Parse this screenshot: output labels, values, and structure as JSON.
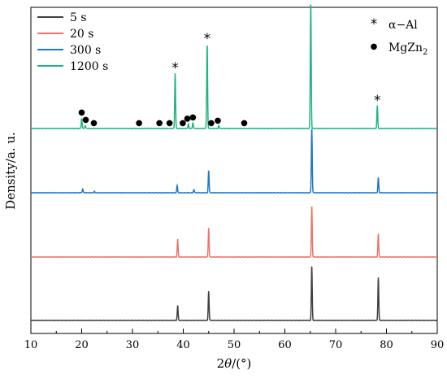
{
  "chart_data": {
    "type": "line",
    "xlabel_parts": {
      "pre": "2",
      "theta": "θ",
      "post": "/(°)"
    },
    "ylabel": "Density/a. u.",
    "xlim": [
      10,
      90
    ],
    "xticks": [
      10,
      20,
      30,
      40,
      50,
      60,
      70,
      80,
      90
    ],
    "grid": false,
    "legend": {
      "placement": "top-left",
      "entries": [
        {
          "name": "5 s",
          "color": "#404040"
        },
        {
          "name": "20 s",
          "color": "#e8766a"
        },
        {
          "name": "300 s",
          "color": "#1f77c4"
        },
        {
          "name": "1200 s",
          "color": "#21b57c"
        }
      ]
    },
    "marker_legend": {
      "placement": "top-right",
      "entries": [
        {
          "symbol": "*",
          "label": "α−Al"
        },
        {
          "symbol": "●",
          "label_main": "MgZn",
          "label_sub": "2"
        }
      ]
    },
    "series": [
      {
        "name": "1200 s",
        "color": "#21b57c",
        "peaks": [
          {
            "x": 20.0,
            "h": 0.16
          },
          {
            "x": 20.7,
            "h": 0.05
          },
          {
            "x": 38.4,
            "h": 0.85
          },
          {
            "x": 41.0,
            "h": 0.07
          },
          {
            "x": 41.9,
            "h": 0.09
          },
          {
            "x": 44.7,
            "h": 1.3
          },
          {
            "x": 47.0,
            "h": 0.04
          },
          {
            "x": 65.1,
            "h": 1.95
          },
          {
            "x": 78.2,
            "h": 0.35
          }
        ]
      },
      {
        "name": "300 s",
        "color": "#1f77c4",
        "peaks": [
          {
            "x": 20.2,
            "h": 0.06
          },
          {
            "x": 22.5,
            "h": 0.02
          },
          {
            "x": 38.8,
            "h": 0.11
          },
          {
            "x": 42.1,
            "h": 0.05
          },
          {
            "x": 45.0,
            "h": 0.34
          },
          {
            "x": 65.3,
            "h": 1.0
          },
          {
            "x": 78.4,
            "h": 0.23
          }
        ]
      },
      {
        "name": "20 s",
        "color": "#e8766a",
        "peaks": [
          {
            "x": 38.9,
            "h": 0.27
          },
          {
            "x": 45.0,
            "h": 0.45
          },
          {
            "x": 65.3,
            "h": 0.79
          },
          {
            "x": 78.4,
            "h": 0.36
          }
        ]
      },
      {
        "name": "5 s",
        "color": "#404040",
        "peaks": [
          {
            "x": 38.9,
            "h": 0.23
          },
          {
            "x": 45.0,
            "h": 0.45
          },
          {
            "x": 65.3,
            "h": 0.84
          },
          {
            "x": 78.4,
            "h": 0.66
          }
        ]
      }
    ],
    "annotations": {
      "alpha_al_marks": [
        {
          "x": 38.4,
          "symbol": "*"
        },
        {
          "x": 44.7,
          "symbol": "*"
        },
        {
          "x": 65.1,
          "symbol": "*"
        },
        {
          "x": 78.2,
          "symbol": "*"
        }
      ],
      "mgzn2_marks": [
        {
          "x": 20.0,
          "symbol": "●"
        },
        {
          "x": 20.8,
          "symbol": "●"
        },
        {
          "x": 22.4,
          "symbol": "●"
        },
        {
          "x": 31.3,
          "symbol": "●"
        },
        {
          "x": 35.3,
          "symbol": "●"
        },
        {
          "x": 37.3,
          "symbol": "●"
        },
        {
          "x": 39.9,
          "symbol": "●"
        },
        {
          "x": 40.8,
          "symbol": "●"
        },
        {
          "x": 41.9,
          "symbol": "●"
        },
        {
          "x": 45.5,
          "symbol": "●"
        },
        {
          "x": 46.8,
          "symbol": "●"
        },
        {
          "x": 52.0,
          "symbol": "●"
        }
      ]
    }
  }
}
